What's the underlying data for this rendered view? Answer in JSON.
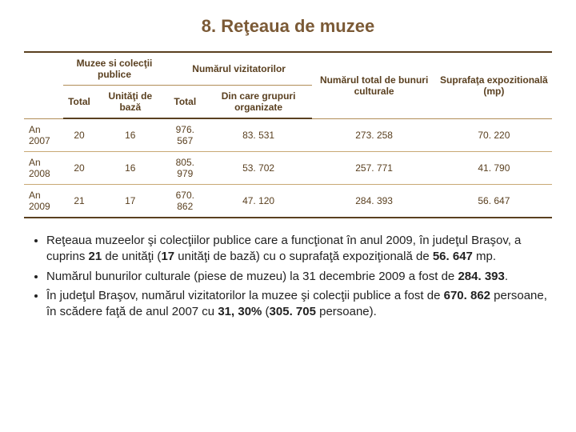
{
  "title": "8. Reţeaua de muzee",
  "table": {
    "header": {
      "group1": "Muzee si colecţii publice",
      "group2": "Numărul vizitatorilor",
      "col5": "Numărul total de bunuri culturale",
      "col6": "Suprafaţa expozitională (mp)",
      "sub1": "Total",
      "sub2": "Unităţi de bază",
      "sub3": "Total",
      "sub4": "Din care grupuri organizate"
    },
    "rows": [
      {
        "label": "An 2007",
        "c1": "20",
        "c2": "16",
        "c3": "976. 567",
        "c4": "83. 531",
        "c5": "273. 258",
        "c6": "70. 220"
      },
      {
        "label": "An 2008",
        "c1": "20",
        "c2": "16",
        "c3": "805. 979",
        "c4": "53. 702",
        "c5": "257. 771",
        "c6": "41. 790"
      },
      {
        "label": "An 2009",
        "c1": "21",
        "c2": "17",
        "c3": "670. 862",
        "c4": "47. 120",
        "c5": "284. 393",
        "c6": "56. 647"
      }
    ],
    "colors": {
      "headerText": "#5a4020",
      "borderDark": "#5a4020",
      "borderLight": "#c9a874"
    }
  },
  "bullets": {
    "b1": {
      "pre": "Reţeaua muzeelor şi colecţiilor publice care a funcţionat în anul 2009, în judeţul Braşov, a cuprins ",
      "s1": "21",
      "mid1": " de unităţi (",
      "s2": "17",
      "mid2": " unităţi de bază) cu o suprafaţă expoziţională de ",
      "s3": "56. 647",
      "post": " mp."
    },
    "b2": {
      "pre": "Numărul bunurilor culturale (piese de muzeu) la 31 decembrie 2009 a fost de ",
      "s1": "284. 393",
      "post": "."
    },
    "b3": {
      "pre": "În judeţul Braşov, numărul vizitatorilor la muzee şi colecţii publice a fost de ",
      "s1": "670. 862",
      "mid1": " persoane, în scădere faţă de anul 2007 cu ",
      "s2": "31, 30%",
      "mid2": " (",
      "s3": "305. 705",
      "post": " persoane)."
    }
  }
}
